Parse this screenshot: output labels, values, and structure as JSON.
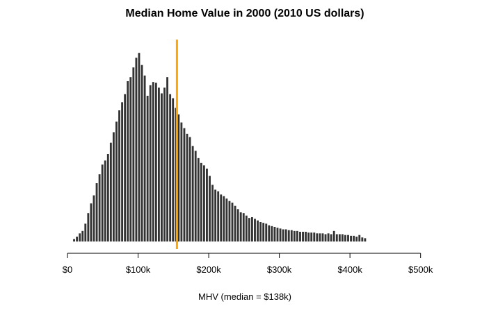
{
  "chart_data": {
    "type": "bar",
    "title": "Median Home Value in 2000 (2010 US dollars)",
    "xlabel": "MHV (median = $138k)",
    "ylabel": "",
    "bin_width": 4000,
    "bin_start": 8000,
    "values": [
      3,
      6,
      10,
      13,
      22,
      35,
      47,
      57,
      72,
      83,
      95,
      100,
      108,
      122,
      135,
      148,
      162,
      172,
      182,
      198,
      203,
      215,
      227,
      233,
      218,
      205,
      180,
      193,
      197,
      196,
      190,
      183,
      190,
      203,
      182,
      177,
      165,
      157,
      147,
      140,
      133,
      129,
      118,
      112,
      103,
      97,
      94,
      90,
      81,
      70,
      64,
      62,
      58,
      56,
      53,
      50,
      48,
      44,
      40,
      36,
      35,
      32,
      29,
      30,
      28,
      26,
      24,
      23,
      22,
      20,
      19,
      18,
      17,
      16,
      15,
      15,
      14,
      14,
      13,
      13,
      12,
      12,
      12,
      11,
      11,
      11,
      10,
      10,
      10,
      9,
      10,
      9,
      13,
      9,
      9,
      9,
      8,
      8,
      7,
      7,
      6,
      8,
      5,
      4
    ],
    "xlim": [
      0,
      520000
    ],
    "ylim": [
      0,
      240
    ],
    "x_ticks": [
      0,
      100000,
      200000,
      300000,
      400000,
      500000
    ],
    "x_tick_labels": [
      "$0",
      "$100k",
      "$200k",
      "$300k",
      "$400k",
      "$500k"
    ],
    "reference_line": {
      "x": 155000,
      "color": "#FFA500"
    },
    "bar_color": "#333333",
    "grid": false
  }
}
